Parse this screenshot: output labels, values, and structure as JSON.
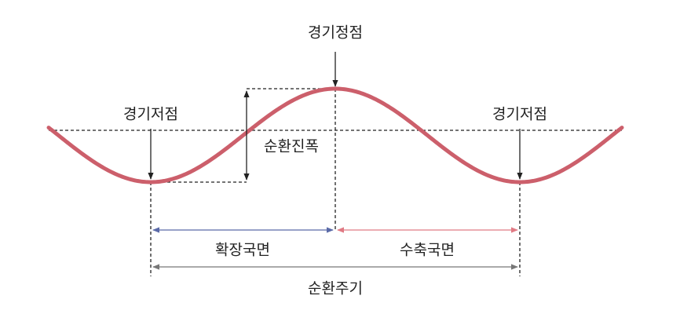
{
  "labels": {
    "peak": "경기정점",
    "trough_left": "경기저점",
    "trough_right": "경기저점",
    "amplitude": "순환진폭",
    "expansion": "확장국면",
    "contraction": "수축국면",
    "cycle": "순환주기"
  }
}
